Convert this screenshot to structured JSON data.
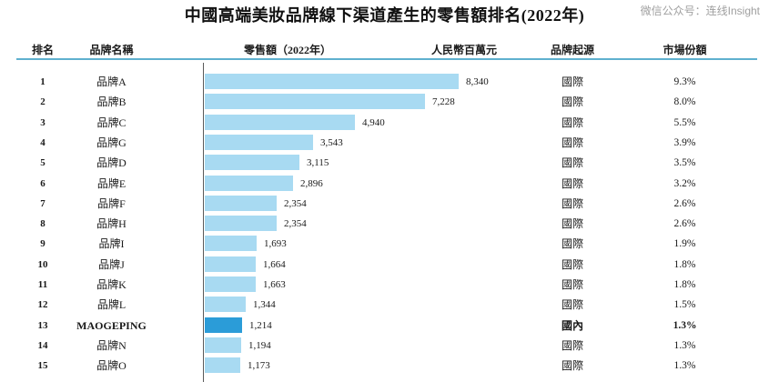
{
  "page": {
    "title": "中國高端美妝品牌線下渠道產生的零售額排名(2022年)",
    "watermark": "微信公众号：连线Insight"
  },
  "chart_data": {
    "type": "bar",
    "orientation": "horizontal",
    "title": "中國高端美妝品牌線下渠道產生的零售額排名(2022年)",
    "xlabel": "人民幣百萬元",
    "xlim": [
      0,
      8500
    ],
    "grid": false,
    "bar_color": "#a8daf2",
    "highlight_color": "#2b9cd8",
    "columns": [
      "排名",
      "品牌名稱",
      "零售額（2022年）",
      "人民幣百萬元",
      "品牌起源",
      "市場份額"
    ],
    "categories": [
      "品牌A",
      "品牌B",
      "品牌C",
      "品牌G",
      "品牌D",
      "品牌E",
      "品牌F",
      "品牌H",
      "品牌I",
      "品牌J",
      "品牌K",
      "品牌L",
      "MAOGEPING",
      "品牌N",
      "品牌O"
    ],
    "values": [
      8340,
      7228,
      4940,
      3543,
      3115,
      2896,
      2354,
      2354,
      1693,
      1664,
      1663,
      1344,
      1214,
      1194,
      1173
    ],
    "rows": [
      {
        "rank": "1",
        "brand": "品牌A",
        "value": 8340,
        "value_label": "8,340",
        "origin": "國際",
        "share": "9.3%",
        "highlight": false
      },
      {
        "rank": "2",
        "brand": "品牌B",
        "value": 7228,
        "value_label": "7,228",
        "origin": "國際",
        "share": "8.0%",
        "highlight": false
      },
      {
        "rank": "3",
        "brand": "品牌C",
        "value": 4940,
        "value_label": "4,940",
        "origin": "國際",
        "share": "5.5%",
        "highlight": false
      },
      {
        "rank": "4",
        "brand": "品牌G",
        "value": 3543,
        "value_label": "3,543",
        "origin": "國際",
        "share": "3.9%",
        "highlight": false
      },
      {
        "rank": "5",
        "brand": "品牌D",
        "value": 3115,
        "value_label": "3,115",
        "origin": "國際",
        "share": "3.5%",
        "highlight": false
      },
      {
        "rank": "6",
        "brand": "品牌E",
        "value": 2896,
        "value_label": "2,896",
        "origin": "國際",
        "share": "3.2%",
        "highlight": false
      },
      {
        "rank": "7",
        "brand": "品牌F",
        "value": 2354,
        "value_label": "2,354",
        "origin": "國際",
        "share": "2.6%",
        "highlight": false
      },
      {
        "rank": "8",
        "brand": "品牌H",
        "value": 2354,
        "value_label": "2,354",
        "origin": "國際",
        "share": "2.6%",
        "highlight": false
      },
      {
        "rank": "9",
        "brand": "品牌I",
        "value": 1693,
        "value_label": "1,693",
        "origin": "國際",
        "share": "1.9%",
        "highlight": false
      },
      {
        "rank": "10",
        "brand": "品牌J",
        "value": 1664,
        "value_label": "1,664",
        "origin": "國際",
        "share": "1.8%",
        "highlight": false
      },
      {
        "rank": "11",
        "brand": "品牌K",
        "value": 1663,
        "value_label": "1,663",
        "origin": "國際",
        "share": "1.8%",
        "highlight": false
      },
      {
        "rank": "12",
        "brand": "品牌L",
        "value": 1344,
        "value_label": "1,344",
        "origin": "國際",
        "share": "1.5%",
        "highlight": false
      },
      {
        "rank": "13",
        "brand": "MAOGEPING",
        "value": 1214,
        "value_label": "1,214",
        "origin": "國內",
        "share": "1.3%",
        "highlight": true
      },
      {
        "rank": "14",
        "brand": "品牌N",
        "value": 1194,
        "value_label": "1,194",
        "origin": "國際",
        "share": "1.3%",
        "highlight": false
      },
      {
        "rank": "15",
        "brand": "品牌O",
        "value": 1173,
        "value_label": "1,173",
        "origin": "國際",
        "share": "1.3%",
        "highlight": false
      }
    ]
  }
}
